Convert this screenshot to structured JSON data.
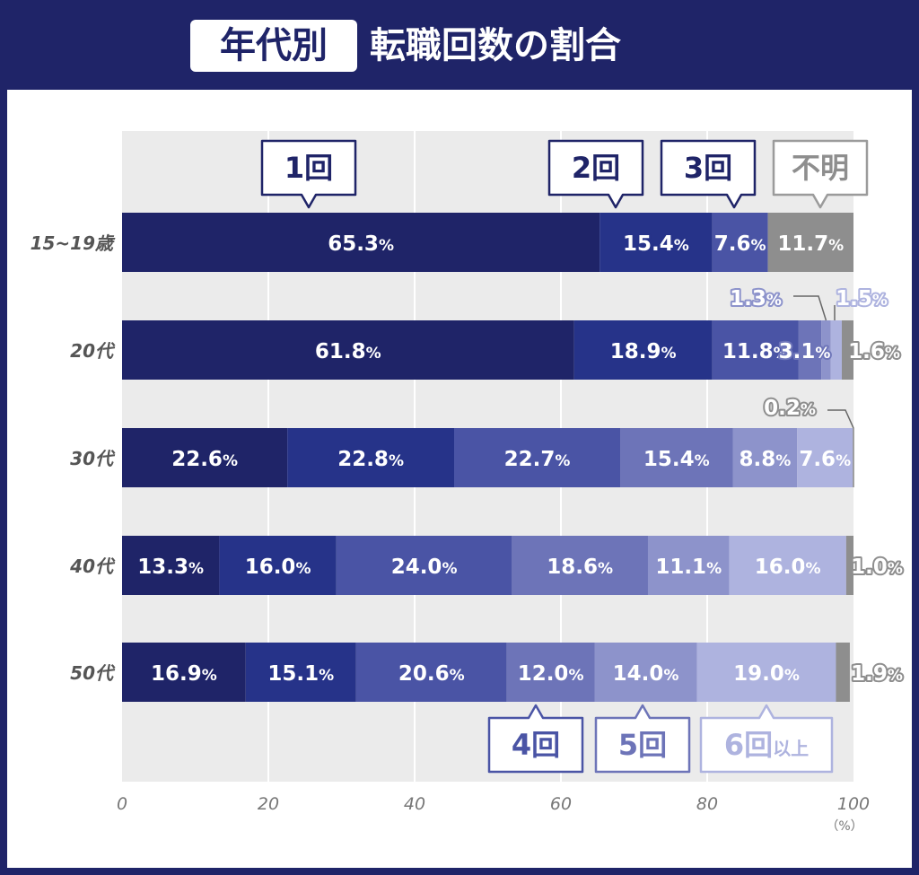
{
  "header": {
    "tag": "年代別",
    "title": "転職回数の割合"
  },
  "colors": {
    "background": "#1f2468",
    "plot_bg": "#ebebeb",
    "grid": "#ffffff",
    "series": [
      "#1f2468",
      "#263389",
      "#4a54a5",
      "#6d74b8",
      "#8d93cb",
      "#aeb3df",
      "#8e8e8e"
    ],
    "callout_border": [
      "#1f2468",
      "#1f2468",
      "#1f2468",
      "#4a54a5",
      "#6d74b8",
      "#aeb3df",
      "#9b9b9b"
    ],
    "callout_text": [
      "#1f2468",
      "#1f2468",
      "#1f2468",
      "#4a54a5",
      "#6d74b8",
      "#aeb3df",
      "#8e8e8e"
    ]
  },
  "chart_data": {
    "type": "bar",
    "orientation": "horizontal",
    "stacked": true,
    "categories": [
      "15~19歳",
      "20代",
      "30代",
      "40代",
      "50代"
    ],
    "series": [
      {
        "name": "1回",
        "values": [
          65.3,
          61.8,
          22.6,
          13.3,
          16.9
        ]
      },
      {
        "name": "2回",
        "values": [
          15.4,
          18.9,
          22.8,
          16.0,
          15.1
        ]
      },
      {
        "name": "3回",
        "values": [
          7.6,
          11.8,
          22.7,
          24.0,
          20.6
        ]
      },
      {
        "name": "4回",
        "values": [
          0,
          3.1,
          15.4,
          18.6,
          12.0
        ]
      },
      {
        "name": "5回",
        "values": [
          0,
          1.3,
          8.8,
          11.1,
          14.0
        ]
      },
      {
        "name": "6回以上",
        "values": [
          0,
          1.5,
          7.6,
          16.0,
          19.0
        ]
      },
      {
        "name": "不明",
        "values": [
          11.7,
          1.6,
          0.2,
          1.0,
          1.9
        ]
      }
    ],
    "value_labels": [
      [
        "65.3",
        "15.4",
        "7.6",
        "",
        "",
        "",
        "11.7"
      ],
      [
        "61.8",
        "18.9",
        "11.8",
        "3.1",
        "1.3",
        "1.5",
        "1.6"
      ],
      [
        "22.6",
        "22.8",
        "22.7",
        "15.4",
        "8.8",
        "7.6",
        "0.2"
      ],
      [
        "13.3",
        "16.0",
        "24.0",
        "18.6",
        "11.1",
        "16.0",
        "1.0"
      ],
      [
        "16.9",
        "15.1",
        "20.6",
        "12.0",
        "14.0",
        "19.0",
        "1.9"
      ]
    ],
    "value_unit": "%",
    "xlim": [
      0,
      100
    ],
    "xticks": [
      "0",
      "20",
      "40",
      "60",
      "80",
      "100"
    ],
    "xunit": "（%）",
    "callouts": [
      {
        "label": "1回",
        "suffix": "",
        "placement": "top"
      },
      {
        "label": "2回",
        "suffix": "",
        "placement": "top"
      },
      {
        "label": "3回",
        "suffix": "",
        "placement": "top"
      },
      {
        "label": "4回",
        "suffix": "",
        "placement": "bottom"
      },
      {
        "label": "5回",
        "suffix": "",
        "placement": "bottom"
      },
      {
        "label": "6回",
        "suffix": "以上",
        "placement": "bottom"
      },
      {
        "label": "不明",
        "suffix": "",
        "placement": "top"
      }
    ],
    "grid": true,
    "legend": "callouts"
  }
}
